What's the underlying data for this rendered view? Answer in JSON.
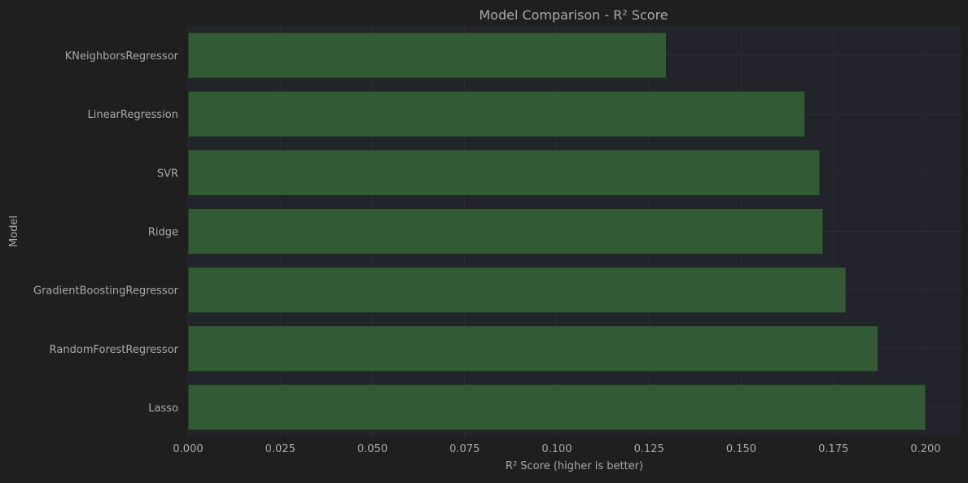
{
  "chart_data": {
    "type": "bar",
    "orientation": "horizontal",
    "title": "Model Comparison - R² Score",
    "xlabel": "R² Score (higher is better)",
    "ylabel": "Model",
    "categories": [
      "KNeighborsRegressor",
      "LinearRegression",
      "SVR",
      "Ridge",
      "GradientBoostingRegressor",
      "RandomForestRegressor",
      "Lasso"
    ],
    "values": [
      0.1297,
      0.1673,
      0.1713,
      0.1722,
      0.1784,
      0.1871,
      0.2
    ],
    "xlim": [
      0.0,
      0.2095
    ],
    "xticks": [
      "0.000",
      "0.025",
      "0.050",
      "0.075",
      "0.100",
      "0.125",
      "0.150",
      "0.175",
      "0.200"
    ],
    "grid": true,
    "colors": {
      "figure_bg": "#1f1f1f",
      "plot_bg": "#23232b",
      "bar": "#325a34",
      "bar_edge": "#1b2a1b",
      "grid": "#2c2c33",
      "text": "#a9a9a9",
      "title": "#a9a9a9"
    }
  }
}
